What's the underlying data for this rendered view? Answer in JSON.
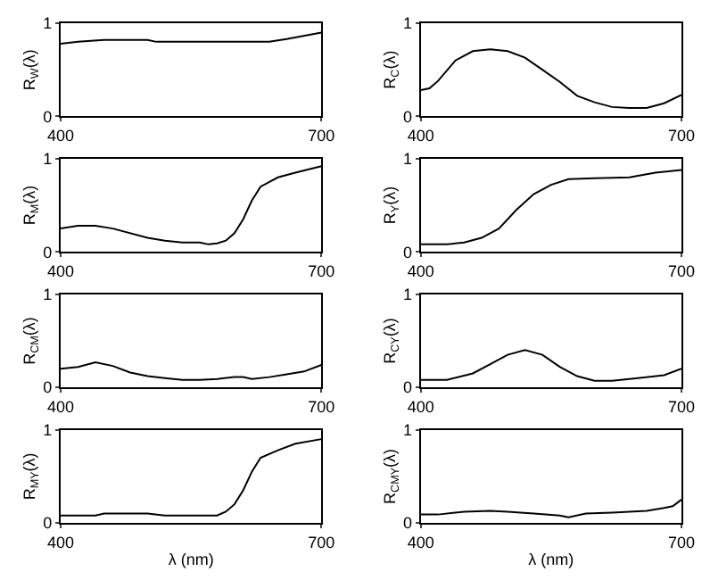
{
  "chart_data": [
    {
      "type": "line",
      "ylabel": "R$_{W}$(λ)",
      "color": "#000000",
      "x": [
        400,
        420,
        450,
        500,
        510,
        600,
        640,
        660,
        700
      ],
      "values": [
        0.78,
        0.8,
        0.82,
        0.82,
        0.8,
        0.8,
        0.8,
        0.83,
        0.9
      ],
      "xlim": [
        400,
        700
      ],
      "xticks": [
        400,
        700
      ],
      "ylim": [
        0,
        1
      ],
      "yticks": [
        0,
        1
      ]
    },
    {
      "type": "line",
      "ylabel": "R$_{C}$(λ)",
      "color": "#000000",
      "x": [
        400,
        410,
        420,
        440,
        460,
        480,
        500,
        520,
        540,
        560,
        580,
        600,
        620,
        640,
        660,
        680,
        700
      ],
      "values": [
        0.28,
        0.3,
        0.38,
        0.6,
        0.7,
        0.72,
        0.7,
        0.63,
        0.5,
        0.37,
        0.22,
        0.15,
        0.1,
        0.09,
        0.09,
        0.14,
        0.23
      ],
      "xlim": [
        400,
        700
      ],
      "xticks": [
        400,
        700
      ],
      "ylim": [
        0,
        1
      ],
      "yticks": [
        0,
        1
      ]
    },
    {
      "type": "line",
      "ylabel": "R$_{M}$(λ)",
      "color": "#000000",
      "x": [
        400,
        420,
        440,
        460,
        500,
        520,
        540,
        560,
        570,
        580,
        590,
        600,
        610,
        620,
        630,
        650,
        670,
        700
      ],
      "values": [
        0.25,
        0.28,
        0.28,
        0.25,
        0.15,
        0.12,
        0.1,
        0.1,
        0.08,
        0.09,
        0.12,
        0.2,
        0.35,
        0.55,
        0.7,
        0.8,
        0.85,
        0.92
      ],
      "xlim": [
        400,
        700
      ],
      "xticks": [
        400,
        700
      ],
      "ylim": [
        0,
        1
      ],
      "yticks": [
        0,
        1
      ]
    },
    {
      "type": "line",
      "ylabel": "R$_{Y}$(λ)",
      "color": "#000000",
      "x": [
        400,
        430,
        450,
        470,
        490,
        510,
        530,
        550,
        570,
        600,
        640,
        670,
        700
      ],
      "values": [
        0.08,
        0.08,
        0.1,
        0.15,
        0.25,
        0.45,
        0.62,
        0.72,
        0.78,
        0.79,
        0.8,
        0.85,
        0.88
      ],
      "xlim": [
        400,
        700
      ],
      "xticks": [
        400,
        700
      ],
      "ylim": [
        0,
        1
      ],
      "yticks": [
        0,
        1
      ]
    },
    {
      "type": "line",
      "ylabel": "R$_{CM}$(λ)",
      "color": "#000000",
      "x": [
        400,
        420,
        440,
        460,
        480,
        500,
        520,
        540,
        560,
        580,
        600,
        610,
        620,
        640,
        660,
        680,
        700
      ],
      "values": [
        0.2,
        0.22,
        0.27,
        0.23,
        0.16,
        0.12,
        0.1,
        0.08,
        0.08,
        0.09,
        0.11,
        0.11,
        0.09,
        0.11,
        0.14,
        0.17,
        0.24
      ],
      "xlim": [
        400,
        700
      ],
      "xticks": [
        400,
        700
      ],
      "ylim": [
        0,
        1
      ],
      "yticks": [
        0,
        1
      ]
    },
    {
      "type": "line",
      "ylabel": "R$_{CY}$(λ)",
      "color": "#000000",
      "x": [
        400,
        430,
        460,
        480,
        500,
        520,
        540,
        560,
        580,
        600,
        620,
        650,
        680,
        700
      ],
      "values": [
        0.08,
        0.08,
        0.15,
        0.25,
        0.35,
        0.4,
        0.35,
        0.22,
        0.12,
        0.07,
        0.07,
        0.1,
        0.13,
        0.2
      ],
      "xlim": [
        400,
        700
      ],
      "xticks": [
        400,
        700
      ],
      "ylim": [
        0,
        1
      ],
      "yticks": [
        0,
        1
      ]
    },
    {
      "type": "line",
      "ylabel": "R$_{MY}$(λ)",
      "xlabel": "λ (nm)",
      "color": "#000000",
      "x": [
        400,
        440,
        450,
        480,
        500,
        520,
        540,
        560,
        580,
        590,
        600,
        610,
        620,
        630,
        650,
        670,
        700
      ],
      "values": [
        0.08,
        0.08,
        0.1,
        0.1,
        0.1,
        0.08,
        0.08,
        0.08,
        0.08,
        0.12,
        0.2,
        0.35,
        0.55,
        0.7,
        0.78,
        0.85,
        0.9
      ],
      "xlim": [
        400,
        700
      ],
      "xticks": [
        400,
        700
      ],
      "ylim": [
        0,
        1
      ],
      "yticks": [
        0,
        1
      ]
    },
    {
      "type": "line",
      "ylabel": "R$_{CMY}$(λ)",
      "xlabel": "λ (nm)",
      "color": "#000000",
      "x": [
        400,
        420,
        450,
        480,
        500,
        530,
        560,
        570,
        590,
        620,
        660,
        680,
        690,
        700
      ],
      "values": [
        0.09,
        0.09,
        0.12,
        0.13,
        0.12,
        0.1,
        0.08,
        0.06,
        0.1,
        0.11,
        0.13,
        0.16,
        0.18,
        0.25
      ],
      "xlim": [
        400,
        700
      ],
      "xticks": [
        400,
        700
      ],
      "ylim": [
        0,
        1
      ],
      "yticks": [
        0,
        1
      ]
    }
  ]
}
